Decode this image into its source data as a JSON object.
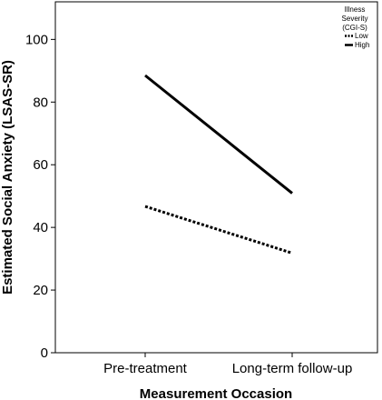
{
  "chart_data": {
    "type": "line",
    "xlabel": "Measurement Occasion",
    "ylabel": "Estimated Social Anxiety (LSAS-SR)",
    "categories": [
      "Pre-treatment",
      "Long-term follow-up"
    ],
    "ylim": [
      0,
      112
    ],
    "yticks": [
      0,
      20,
      40,
      60,
      80,
      100
    ],
    "grid": false,
    "legend": {
      "title_lines": [
        "Illness",
        "Severity",
        "(CGI-S)"
      ],
      "placement": "top-right"
    },
    "series": [
      {
        "name": "Low",
        "values": [
          46.7,
          31.8
        ],
        "style": "dotted",
        "color": "#000000"
      },
      {
        "name": "High",
        "values": [
          88.5,
          50.9
        ],
        "style": "solid",
        "color": "#000000"
      }
    ]
  }
}
